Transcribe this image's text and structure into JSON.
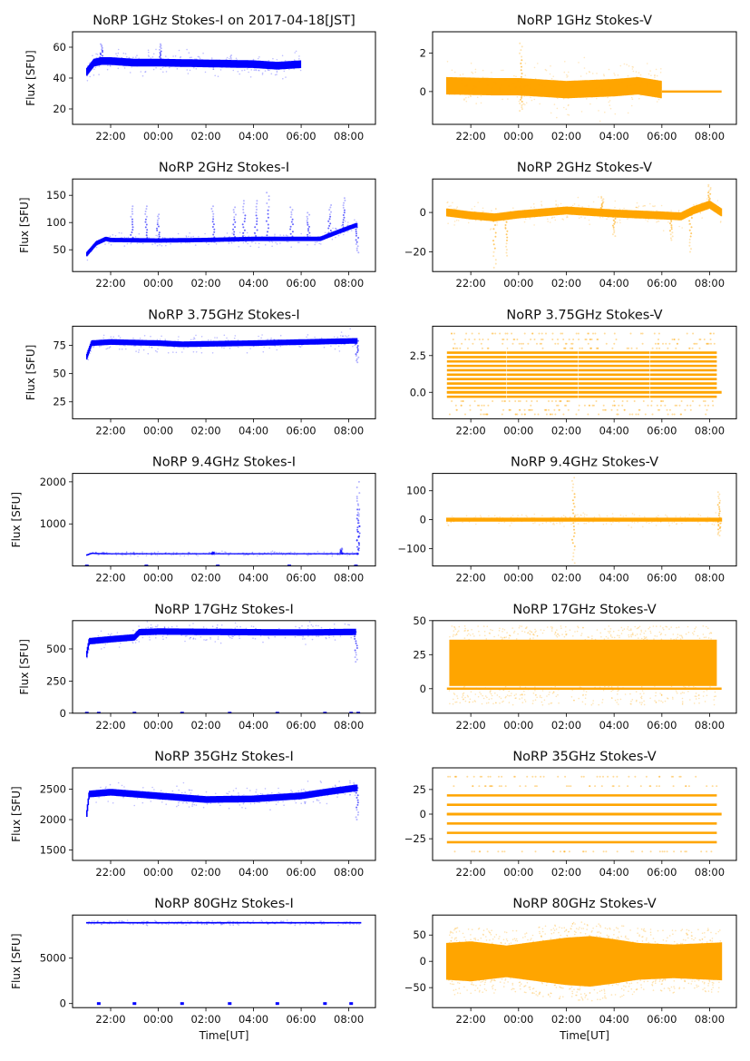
{
  "figure": {
    "colors": {
      "stokes_i": "#0000ff",
      "stokes_v": "#ffa500"
    },
    "x_tick_labels": [
      "22:00",
      "00:00",
      "02:00",
      "04:00",
      "06:00",
      "08:00"
    ],
    "x_tick_hours": [
      22,
      24,
      26,
      28,
      30,
      32
    ],
    "xlim_hours": [
      20.4,
      33.12
    ],
    "xlabel": "Time[UT]",
    "ylabel": "Flux [SFU]"
  },
  "chart_data": [
    {
      "type": "scatter",
      "id": "i1",
      "title": "NoRP 1GHz Stokes-I on 2017-04-18[JST]",
      "ylabel": "Flux [SFU]",
      "xlabel": "",
      "ylim": [
        10,
        70
      ],
      "yticks": [
        20,
        40,
        60
      ],
      "ytick_labels": [
        "20",
        "40",
        "60"
      ],
      "color": "#0000ff",
      "series": {
        "x_start": 21.0,
        "x_end": 30.0,
        "baseline": [
          [
            21.0,
            44
          ],
          [
            21.3,
            50
          ],
          [
            21.6,
            51
          ],
          [
            22,
            51
          ],
          [
            23,
            50
          ],
          [
            24,
            50
          ],
          [
            26,
            49.5
          ],
          [
            28,
            49
          ],
          [
            29,
            48
          ],
          [
            30,
            49
          ]
        ],
        "spread": 2.5,
        "spikes": [
          [
            21.6,
            62
          ],
          [
            24.1,
            62
          ]
        ]
      }
    },
    {
      "type": "scatter",
      "id": "v1",
      "title": "NoRP 1GHz Stokes-V",
      "ylabel": "",
      "xlabel": "",
      "ylim": [
        -1.7,
        3.1
      ],
      "yticks": [
        0,
        2
      ],
      "ytick_labels": [
        "0",
        "2"
      ],
      "color": "#ffa500",
      "series": {
        "x_start": 21.0,
        "x_end": 30.0,
        "baseline": [
          [
            21.0,
            0.3
          ],
          [
            23,
            0.25
          ],
          [
            24,
            0.25
          ],
          [
            26,
            0.1
          ],
          [
            28,
            0.2
          ],
          [
            29,
            0.3
          ],
          [
            30,
            0.1
          ]
        ],
        "spread": 0.45,
        "flat_after": [
          30.0,
          32.5,
          0
        ],
        "spikes": [
          [
            24.1,
            2.5
          ],
          [
            24.1,
            -1.0
          ]
        ]
      }
    },
    {
      "type": "scatter",
      "id": "i2",
      "title": "NoRP 2GHz Stokes-I",
      "ylabel": "Flux [SFU]",
      "xlabel": "",
      "ylim": [
        10,
        180
      ],
      "yticks": [
        50,
        100,
        150
      ],
      "ytick_labels": [
        "50",
        "100",
        "150"
      ],
      "color": "#0000ff",
      "series": {
        "x_start": 21.0,
        "x_end": 32.35,
        "baseline": [
          [
            21.0,
            42
          ],
          [
            21.4,
            62
          ],
          [
            21.8,
            70
          ],
          [
            22,
            68
          ],
          [
            24,
            67
          ],
          [
            26,
            68
          ],
          [
            28,
            70
          ],
          [
            30,
            70
          ],
          [
            30.8,
            70
          ],
          [
            31.5,
            82
          ],
          [
            32.3,
            95
          ]
        ],
        "spread": 4,
        "spikes": [
          [
            22.9,
            130
          ],
          [
            23.5,
            130
          ],
          [
            24,
            115
          ],
          [
            26.3,
            130
          ],
          [
            27.2,
            128
          ],
          [
            27.6,
            140
          ],
          [
            28.1,
            140
          ],
          [
            28.6,
            155
          ],
          [
            29.6,
            128
          ],
          [
            30.3,
            118
          ],
          [
            31.2,
            132
          ],
          [
            31.8,
            145
          ],
          [
            32.35,
            45
          ]
        ]
      }
    },
    {
      "type": "scatter",
      "id": "v2",
      "title": "NoRP 2GHz Stokes-V",
      "ylabel": "",
      "xlabel": "",
      "ylim": [
        -30,
        17
      ],
      "yticks": [
        -20,
        0
      ],
      "ytick_labels": [
        "−20",
        "0"
      ],
      "color": "#ffa500",
      "series": {
        "x_start": 21.0,
        "x_end": 32.5,
        "baseline": [
          [
            21.0,
            0
          ],
          [
            22,
            -1.5
          ],
          [
            23,
            -2.5
          ],
          [
            24,
            -1
          ],
          [
            26,
            1
          ],
          [
            28,
            -0.5
          ],
          [
            30,
            -1.5
          ],
          [
            30.8,
            -2
          ],
          [
            31.3,
            1
          ],
          [
            32,
            4
          ],
          [
            32.5,
            0
          ]
        ],
        "spread": 2,
        "spikes": [
          [
            23.0,
            -28
          ],
          [
            23.5,
            -22
          ],
          [
            28.0,
            -12
          ],
          [
            30.4,
            -14
          ],
          [
            31.2,
            -20
          ],
          [
            32,
            14
          ],
          [
            27.5,
            8
          ]
        ]
      }
    },
    {
      "type": "scatter",
      "id": "i3",
      "title": "NoRP 3.75GHz Stokes-I",
      "ylabel": "Flux [SFU]",
      "xlabel": "",
      "ylim": [
        10,
        92
      ],
      "yticks": [
        25,
        50,
        75
      ],
      "ytick_labels": [
        "25",
        "50",
        "75"
      ],
      "color": "#0000ff",
      "series": {
        "x_start": 21.0,
        "x_end": 32.35,
        "baseline": [
          [
            21.0,
            65
          ],
          [
            21.2,
            77
          ],
          [
            22,
            78
          ],
          [
            24,
            77
          ],
          [
            25,
            76
          ],
          [
            28,
            77
          ],
          [
            32.3,
            79
          ]
        ],
        "spread": 2.5,
        "spikes": [
          [
            32.35,
            60
          ]
        ]
      }
    },
    {
      "type": "scatter",
      "id": "v3",
      "title": "NoRP 3.75GHz Stokes-V",
      "ylabel": "",
      "xlabel": "",
      "ylim": [
        -1.8,
        4.5
      ],
      "yticks": [
        0.0,
        2.5
      ],
      "ytick_labels": [
        "0.0",
        "2.5"
      ],
      "color": "#ffa500",
      "series": {
        "x_start": 21.0,
        "x_end": 32.5,
        "levels": [
          -1.5,
          -1.2,
          -0.9,
          -0.6,
          -0.3,
          0,
          0.3,
          0.6,
          0.9,
          1.2,
          1.5,
          1.8,
          2.1,
          2.4,
          2.7,
          3.0,
          3.3,
          3.6,
          4.0
        ],
        "dense_levels": [
          -0.3,
          0,
          0.3,
          0.6,
          0.9,
          1.2,
          1.5,
          1.8,
          2.1,
          2.4,
          2.7
        ],
        "gaps": [
          23.5,
          26.5,
          29.5
        ]
      }
    },
    {
      "type": "scatter",
      "id": "i4",
      "title": "NoRP 9.4GHz Stokes-I",
      "ylabel": "Flux [SFU]",
      "xlabel": "",
      "ylim": [
        0,
        2200
      ],
      "yticks": [
        1000,
        2000
      ],
      "ytick_labels": [
        "1000",
        "2000"
      ],
      "color": "#0000ff",
      "series": {
        "x_start": 21.0,
        "x_end": 32.4,
        "baseline": [
          [
            21.0,
            260
          ],
          [
            21.2,
            300
          ],
          [
            22,
            290
          ],
          [
            24,
            290
          ],
          [
            28,
            290
          ],
          [
            32.3,
            290
          ]
        ],
        "spread": 15,
        "spikes": [
          [
            26.3,
            330
          ],
          [
            32.4,
            2000
          ],
          [
            32.4,
            1650
          ],
          [
            32.4,
            1350
          ],
          [
            31.7,
            420
          ]
        ],
        "zero_marks": [
          21.0,
          23.5,
          26.5,
          29.5,
          32.3
        ]
      }
    },
    {
      "type": "scatter",
      "id": "v4",
      "title": "NoRP 9.4GHz Stokes-V",
      "ylabel": "",
      "xlabel": "",
      "ylim": [
        -160,
        160
      ],
      "yticks": [
        -100,
        0,
        100
      ],
      "ytick_labels": [
        "−100",
        "0",
        "100"
      ],
      "color": "#ffa500",
      "series": {
        "x_start": 21.0,
        "x_end": 32.5,
        "baseline": [
          [
            21.0,
            0
          ],
          [
            32.5,
            0
          ]
        ],
        "spread": 7,
        "spikes": [
          [
            26.3,
            145
          ],
          [
            26.3,
            -150
          ],
          [
            32.4,
            95
          ],
          [
            32.4,
            -55
          ]
        ]
      }
    },
    {
      "type": "scatter",
      "id": "i5",
      "title": "NoRP 17GHz Stokes-I",
      "ylabel": "Flux [SFU]",
      "xlabel": "",
      "ylim": [
        0,
        720
      ],
      "yticks": [
        0,
        250,
        500
      ],
      "ytick_labels": [
        "0",
        "250",
        "500"
      ],
      "color": "#0000ff",
      "series": {
        "x_start": 21.0,
        "x_end": 32.3,
        "baseline": [
          [
            21.0,
            460
          ],
          [
            21.1,
            560
          ],
          [
            22,
            575
          ],
          [
            23,
            590
          ],
          [
            23.2,
            630
          ],
          [
            24,
            635
          ],
          [
            28,
            630
          ],
          [
            30,
            628
          ],
          [
            32.3,
            632
          ]
        ],
        "spread": 25,
        "spikes": [
          [
            32.3,
            400
          ]
        ],
        "zero_marks": [
          21.0,
          21.5,
          23.0,
          25.0,
          27.0,
          29.0,
          31.0,
          32.1,
          32.4
        ]
      }
    },
    {
      "type": "scatter",
      "id": "v5",
      "title": "NoRP 17GHz Stokes-V",
      "ylabel": "",
      "xlabel": "",
      "ylim": [
        -18,
        50
      ],
      "yticks": [
        0,
        25,
        50
      ],
      "ytick_labels": [
        "0",
        "25",
        "50"
      ],
      "color": "#ffa500",
      "series": {
        "x_start": 21.0,
        "x_end": 32.5,
        "band": [
          2,
          36
        ],
        "outer": [
          -12,
          46
        ],
        "flat": 0
      }
    },
    {
      "type": "scatter",
      "id": "i6",
      "title": "NoRP 35GHz Stokes-I",
      "ylabel": "Flux [SFU]",
      "xlabel": "",
      "ylim": [
        1330,
        2850
      ],
      "yticks": [
        1500,
        2000,
        2500
      ],
      "ytick_labels": [
        "1500",
        "2000",
        "2500"
      ],
      "color": "#0000ff",
      "series": {
        "x_start": 21.0,
        "x_end": 32.35,
        "baseline": [
          [
            21.0,
            2100
          ],
          [
            21.1,
            2420
          ],
          [
            22,
            2450
          ],
          [
            24,
            2390
          ],
          [
            26,
            2330
          ],
          [
            28,
            2340
          ],
          [
            30,
            2390
          ],
          [
            31,
            2450
          ],
          [
            32.3,
            2520
          ]
        ],
        "spread": 55,
        "spikes": [
          [
            32.35,
            2000
          ]
        ]
      }
    },
    {
      "type": "scatter",
      "id": "v6",
      "title": "NoRP 35GHz Stokes-V",
      "ylabel": "",
      "xlabel": "",
      "ylim": [
        -47,
        47
      ],
      "yticks": [
        -25,
        0,
        25
      ],
      "ytick_labels": [
        "−25",
        "0",
        "25"
      ],
      "color": "#ffa500",
      "series": {
        "x_start": 21.0,
        "x_end": 32.5,
        "levels": [
          -38,
          -28.5,
          -19,
          -9.5,
          0,
          9.5,
          19,
          28.5,
          38
        ],
        "dense_levels": [
          -28.5,
          -19,
          -9.5,
          0,
          9.5,
          19
        ]
      }
    },
    {
      "type": "scatter",
      "id": "i7",
      "title": "NoRP 80GHz Stokes-I",
      "ylabel": "Flux [SFU]",
      "xlabel": "Time[UT]",
      "ylim": [
        -450,
        9750
      ],
      "yticks": [
        0,
        5000
      ],
      "ytick_labels": [
        "0",
        "5000"
      ],
      "color": "#0000ff",
      "series": {
        "x_start": 21.0,
        "x_end": 32.5,
        "baseline": [
          [
            21.0,
            8900
          ],
          [
            32.5,
            8900
          ]
        ],
        "spread": 80,
        "zero_marks": [
          21.5,
          23.0,
          25.0,
          27.0,
          29.0,
          31.0,
          32.1
        ]
      }
    },
    {
      "type": "scatter",
      "id": "v7",
      "title": "NoRP 80GHz Stokes-V",
      "ylabel": "",
      "xlabel": "Time[UT]",
      "ylim": [
        -88,
        88
      ],
      "yticks": [
        -50,
        0,
        50
      ],
      "ytick_labels": [
        "−50",
        "0",
        "50"
      ],
      "color": "#ffa500",
      "series": {
        "x_start": 21.0,
        "x_end": 32.5,
        "band_profile": [
          [
            21.0,
            35
          ],
          [
            22,
            38
          ],
          [
            23.5,
            30
          ],
          [
            26,
            45
          ],
          [
            27,
            48
          ],
          [
            28,
            42
          ],
          [
            29,
            35
          ],
          [
            30.5,
            32
          ],
          [
            32.5,
            36
          ]
        ],
        "center": 0
      }
    }
  ]
}
